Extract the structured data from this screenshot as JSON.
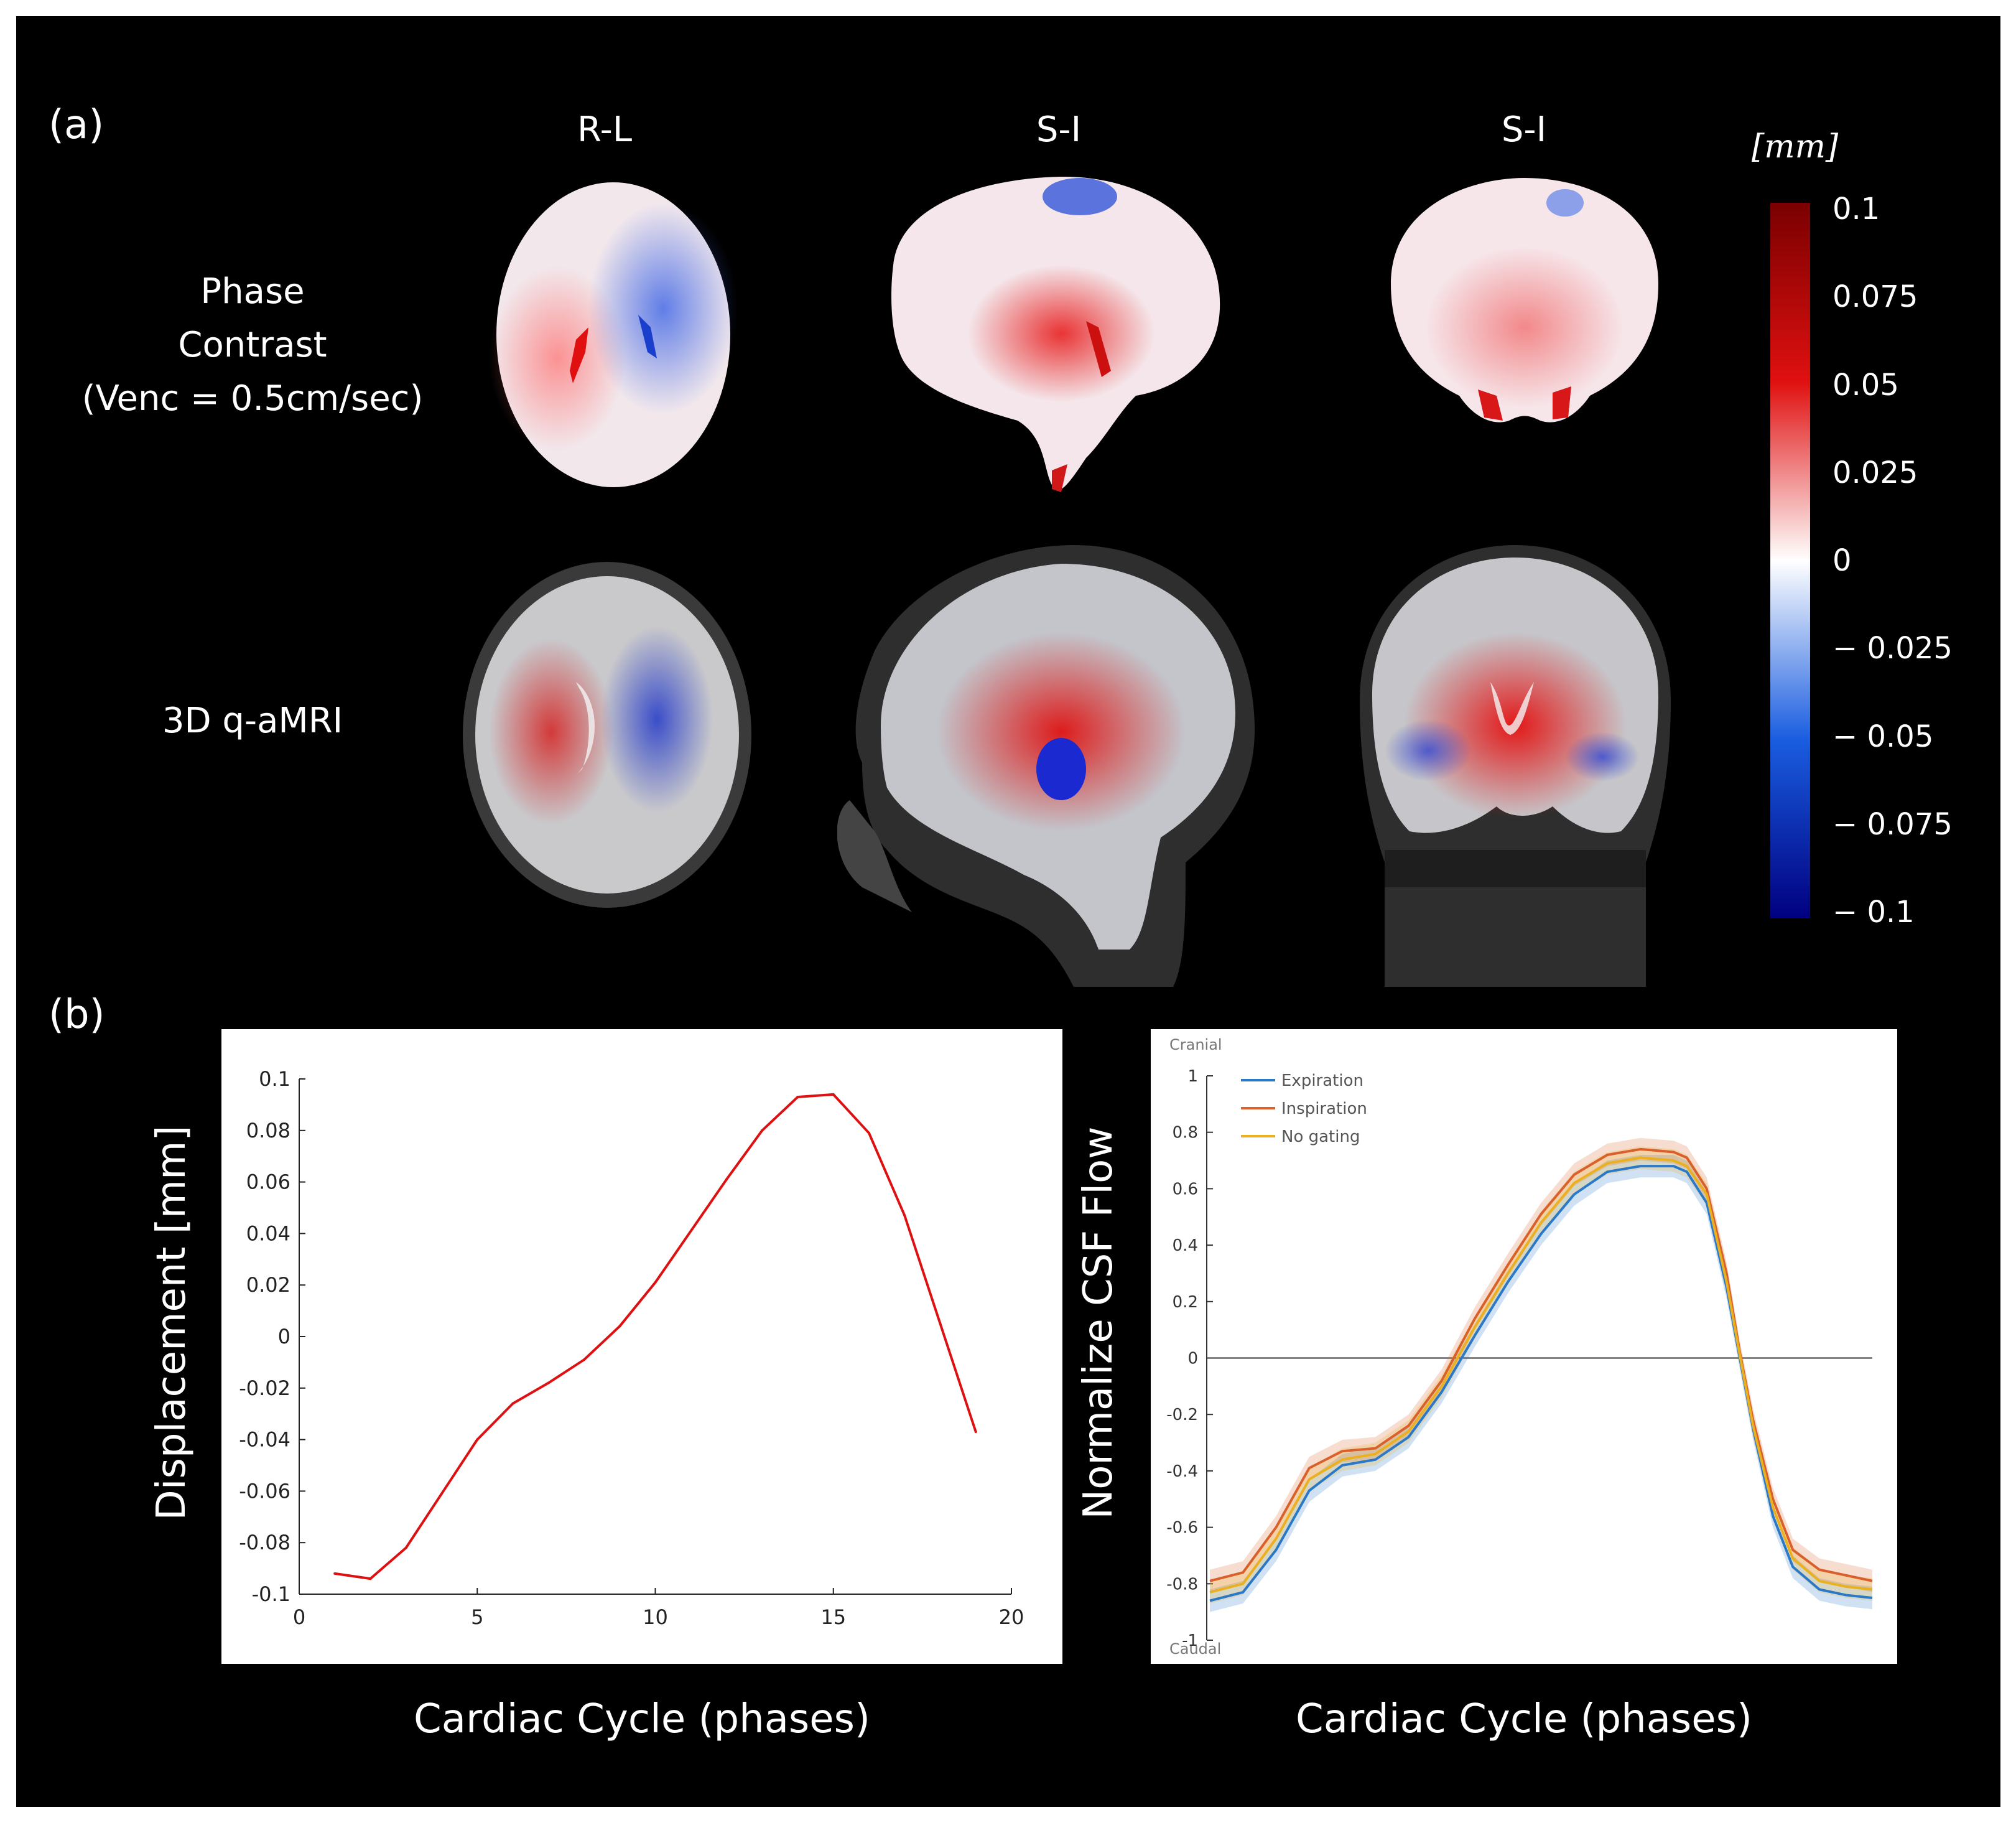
{
  "panel_a": {
    "label": "(a)",
    "column_headers": [
      "R-L",
      "S-I",
      "S-I"
    ],
    "row_headers": {
      "phase_contrast": [
        "Phase",
        "Contrast",
        "(Venc = 0.5cm/sec)"
      ],
      "qamri": "3D q-aMRI"
    },
    "colorbar": {
      "unit": "[mm]",
      "ticks": [
        "0.1",
        "0.075",
        "0.05",
        "0.025",
        "0",
        "− 0.025",
        "− 0.05",
        "− 0.075",
        "− 0.1"
      ],
      "colors": {
        "max": "#7a0000",
        "high": "#e01010",
        "zero": "#ffffff",
        "low": "#1a5de0",
        "min": "#000080"
      }
    }
  },
  "panel_b": {
    "label": "(b)",
    "left_xlabel": "Cardiac Cycle (phases)",
    "left_ylabel": "Displacement [mm]",
    "right_xlabel": "Cardiac Cycle (phases)",
    "right_ylabel": "Normalize CSF Flow"
  },
  "chart_data": [
    {
      "type": "line",
      "title": "",
      "xlabel": "Cardiac Cycle (phases)",
      "ylabel": "Displacement [mm]",
      "xlim": [
        0,
        20
      ],
      "ylim": [
        -0.1,
        0.1
      ],
      "xticks": [
        "0",
        "5",
        "10",
        "15",
        "20"
      ],
      "yticks": [
        "0.1",
        "0.08",
        "0.06",
        "0.04",
        "0.02",
        "0",
        "-0.02",
        "-0.04",
        "-0.06",
        "-0.08",
        "-0.1"
      ],
      "series": [
        {
          "name": "displacement",
          "color": "#dd1111",
          "x": [
            1,
            2,
            3,
            4,
            5,
            6,
            7,
            8,
            9,
            10,
            11,
            12,
            13,
            14,
            15,
            16,
            17,
            18,
            19
          ],
          "y": [
            -0.092,
            -0.094,
            -0.082,
            -0.061,
            -0.04,
            -0.026,
            -0.018,
            -0.009,
            0.004,
            0.021,
            0.041,
            0.061,
            0.08,
            0.093,
            0.094,
            0.079,
            0.047,
            0.005,
            -0.037
          ]
        }
      ]
    },
    {
      "type": "line",
      "title": "",
      "xlabel": "Cardiac Cycle (phases)",
      "ylabel": "Normalize CSF Flow",
      "ylim": [
        -1,
        1
      ],
      "yticks": [
        "1",
        "0.8",
        "0.6",
        "0.4",
        "0.2",
        "0",
        "-0.2",
        "-0.4",
        "-0.6",
        "-0.8",
        "-1"
      ],
      "annotations": {
        "top": "Cranial",
        "bottom": "Caudal"
      },
      "legend": "top-left",
      "x": [
        0,
        0.05,
        0.1,
        0.15,
        0.2,
        0.25,
        0.3,
        0.35,
        0.4,
        0.45,
        0.5,
        0.55,
        0.6,
        0.65,
        0.7,
        0.72,
        0.75,
        0.78,
        0.8,
        0.82,
        0.85,
        0.88,
        0.92,
        0.96,
        1.0
      ],
      "series": [
        {
          "name": "Expiration",
          "color": "#2a78c8",
          "band": 0.04,
          "y": [
            -0.86,
            -0.83,
            -0.68,
            -0.47,
            -0.38,
            -0.36,
            -0.28,
            -0.12,
            0.08,
            0.27,
            0.44,
            0.58,
            0.66,
            0.68,
            0.68,
            0.66,
            0.55,
            0.25,
            0.0,
            -0.25,
            -0.56,
            -0.74,
            -0.82,
            -0.84,
            -0.85
          ]
        },
        {
          "name": "Inspiration",
          "color": "#d9602a",
          "band": 0.04,
          "y": [
            -0.79,
            -0.76,
            -0.6,
            -0.39,
            -0.33,
            -0.32,
            -0.24,
            -0.08,
            0.14,
            0.33,
            0.51,
            0.65,
            0.72,
            0.74,
            0.73,
            0.71,
            0.6,
            0.3,
            0.02,
            -0.22,
            -0.5,
            -0.68,
            -0.75,
            -0.77,
            -0.79
          ]
        },
        {
          "name": "No gating",
          "color": "#eab020",
          "band": 0.04,
          "y": [
            -0.83,
            -0.8,
            -0.64,
            -0.43,
            -0.36,
            -0.34,
            -0.26,
            -0.1,
            0.11,
            0.3,
            0.48,
            0.62,
            0.69,
            0.71,
            0.7,
            0.68,
            0.58,
            0.27,
            0.01,
            -0.24,
            -0.53,
            -0.71,
            -0.79,
            -0.81,
            -0.82
          ]
        }
      ]
    }
  ]
}
